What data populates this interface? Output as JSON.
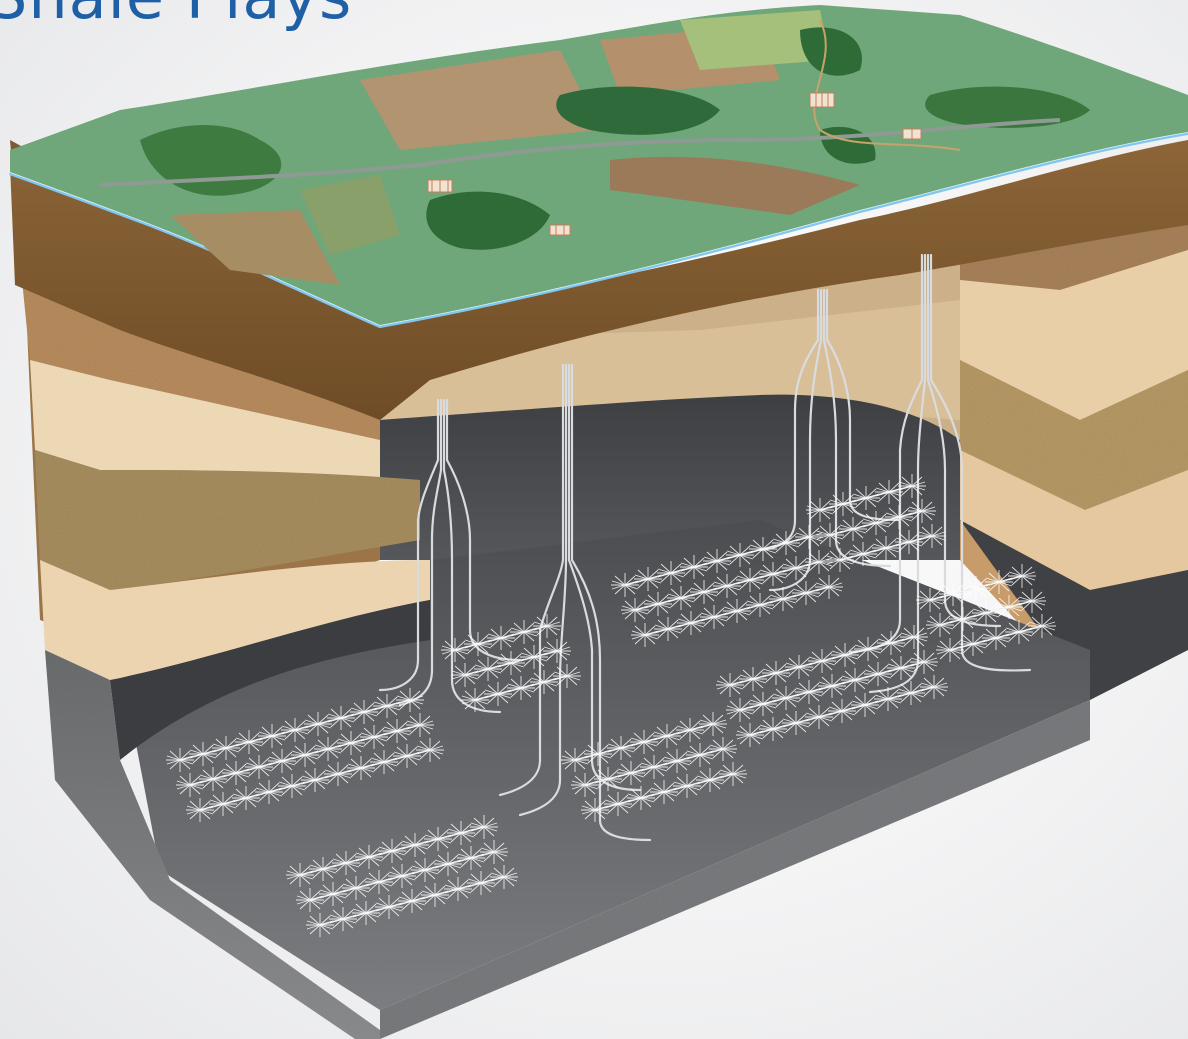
{
  "title": "Shale Plays",
  "colors": {
    "title": "#1f5fa6",
    "water_table": "#7fc7ee",
    "shale": "#5a5c5e",
    "fracture": "#ffffff"
  },
  "icons": {
    "pads": [
      "well-pad-icon",
      "well-pad-icon",
      "well-pad-icon",
      "well-pad-icon"
    ]
  }
}
